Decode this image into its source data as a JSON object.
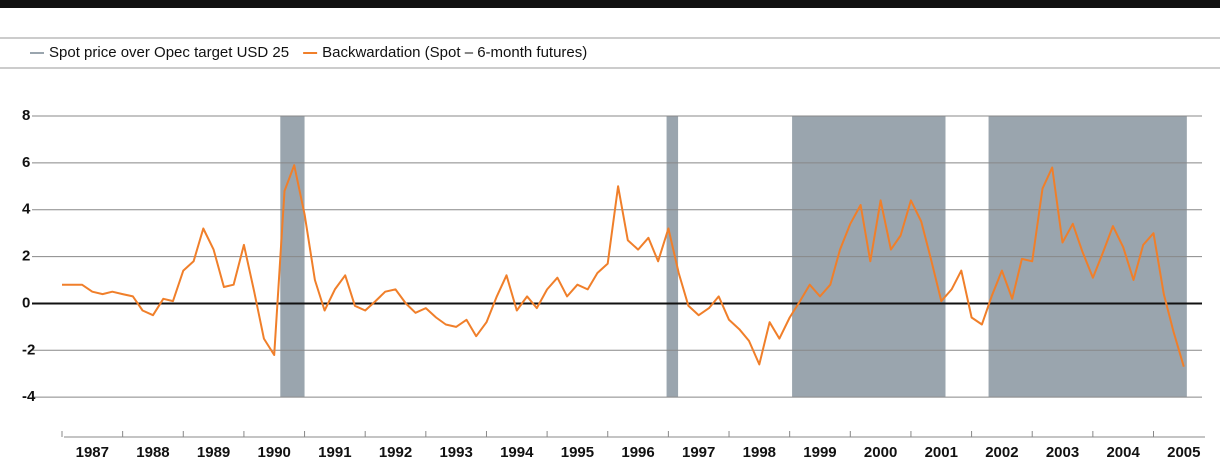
{
  "chart_data": {
    "type": "line",
    "legend": "top-left",
    "grid": true,
    "xlim": [
      1987,
      2005.8
    ],
    "ylim": [
      -5.7,
      8
    ],
    "yticks": [
      -4,
      -2,
      0,
      2,
      4,
      6,
      8
    ],
    "xticks": [
      1987,
      1988,
      1989,
      1990,
      1991,
      1992,
      1993,
      1994,
      1995,
      1996,
      1997,
      1998,
      1999,
      2000,
      2001,
      2002,
      2003,
      2004,
      2005
    ],
    "x": [
      1987.0,
      1987.17,
      1987.33,
      1987.5,
      1987.67,
      1987.83,
      1988.0,
      1988.17,
      1988.33,
      1988.5,
      1988.67,
      1988.83,
      1989.0,
      1989.17,
      1989.33,
      1989.5,
      1989.67,
      1989.83,
      1990.0,
      1990.17,
      1990.33,
      1990.5,
      1990.67,
      1990.83,
      1991.0,
      1991.17,
      1991.33,
      1991.5,
      1991.67,
      1991.83,
      1992.0,
      1992.17,
      1992.33,
      1992.5,
      1992.67,
      1992.83,
      1993.0,
      1993.17,
      1993.33,
      1993.5,
      1993.67,
      1993.83,
      1994.0,
      1994.17,
      1994.33,
      1994.5,
      1994.67,
      1994.83,
      1995.0,
      1995.17,
      1995.33,
      1995.5,
      1995.67,
      1995.83,
      1996.0,
      1996.17,
      1996.33,
      1996.5,
      1996.67,
      1996.83,
      1997.0,
      1997.17,
      1997.33,
      1997.5,
      1997.67,
      1997.83,
      1998.0,
      1998.17,
      1998.33,
      1998.5,
      1998.67,
      1998.83,
      1999.0,
      1999.17,
      1999.33,
      1999.5,
      1999.67,
      1999.83,
      2000.0,
      2000.17,
      2000.33,
      2000.5,
      2000.67,
      2000.83,
      2001.0,
      2001.17,
      2001.33,
      2001.5,
      2001.67,
      2001.83,
      2002.0,
      2002.17,
      2002.33,
      2002.5,
      2002.67,
      2002.83,
      2003.0,
      2003.17,
      2003.33,
      2003.5,
      2003.67,
      2003.83,
      2004.0,
      2004.17,
      2004.33,
      2004.5,
      2004.67,
      2004.83,
      2005.0,
      2005.17,
      2005.33,
      2005.5
    ],
    "series": [
      {
        "name": "Spot price over Opec target USD 25",
        "color": "#9aa5ae",
        "spans": [
          [
            1990.6,
            1991.0
          ],
          [
            1996.97,
            1997.16
          ],
          [
            1999.04,
            2001.57
          ],
          [
            2002.28,
            2005.55
          ]
        ]
      },
      {
        "name": "Backwardation (Spot – 6-month futures)",
        "color": "#f07f2a",
        "values": [
          0.8,
          0.8,
          0.8,
          0.5,
          0.4,
          0.5,
          0.4,
          0.3,
          -0.3,
          -0.5,
          0.2,
          0.1,
          1.4,
          1.8,
          3.2,
          2.3,
          0.7,
          0.8,
          2.5,
          0.5,
          -1.5,
          -2.2,
          4.8,
          5.9,
          3.8,
          1.0,
          -0.3,
          0.6,
          1.2,
          -0.1,
          -0.3,
          0.1,
          0.5,
          0.6,
          0.0,
          -0.4,
          -0.2,
          -0.6,
          -0.9,
          -1.0,
          -0.7,
          -1.4,
          -0.8,
          0.3,
          1.2,
          -0.3,
          0.3,
          -0.2,
          0.6,
          1.1,
          0.3,
          0.8,
          0.6,
          1.3,
          1.7,
          5.0,
          2.7,
          2.3,
          2.8,
          1.8,
          3.2,
          1.3,
          -0.1,
          -0.5,
          -0.2,
          0.3,
          -0.7,
          -1.1,
          -1.6,
          -2.6,
          -0.8,
          -1.5,
          -0.6,
          0.1,
          0.8,
          0.3,
          0.8,
          2.3,
          3.4,
          4.2,
          1.8,
          4.4,
          2.3,
          2.9,
          4.4,
          3.5,
          1.9,
          0.1,
          0.6,
          1.4,
          -0.6,
          -0.9,
          0.3,
          1.4,
          0.2,
          1.9,
          1.8,
          4.9,
          5.8,
          2.6,
          3.4,
          2.2,
          1.1,
          2.2,
          3.3,
          2.4,
          1.0,
          2.5,
          3.0,
          0.4,
          -1.2,
          -2.7
        ]
      }
    ]
  }
}
